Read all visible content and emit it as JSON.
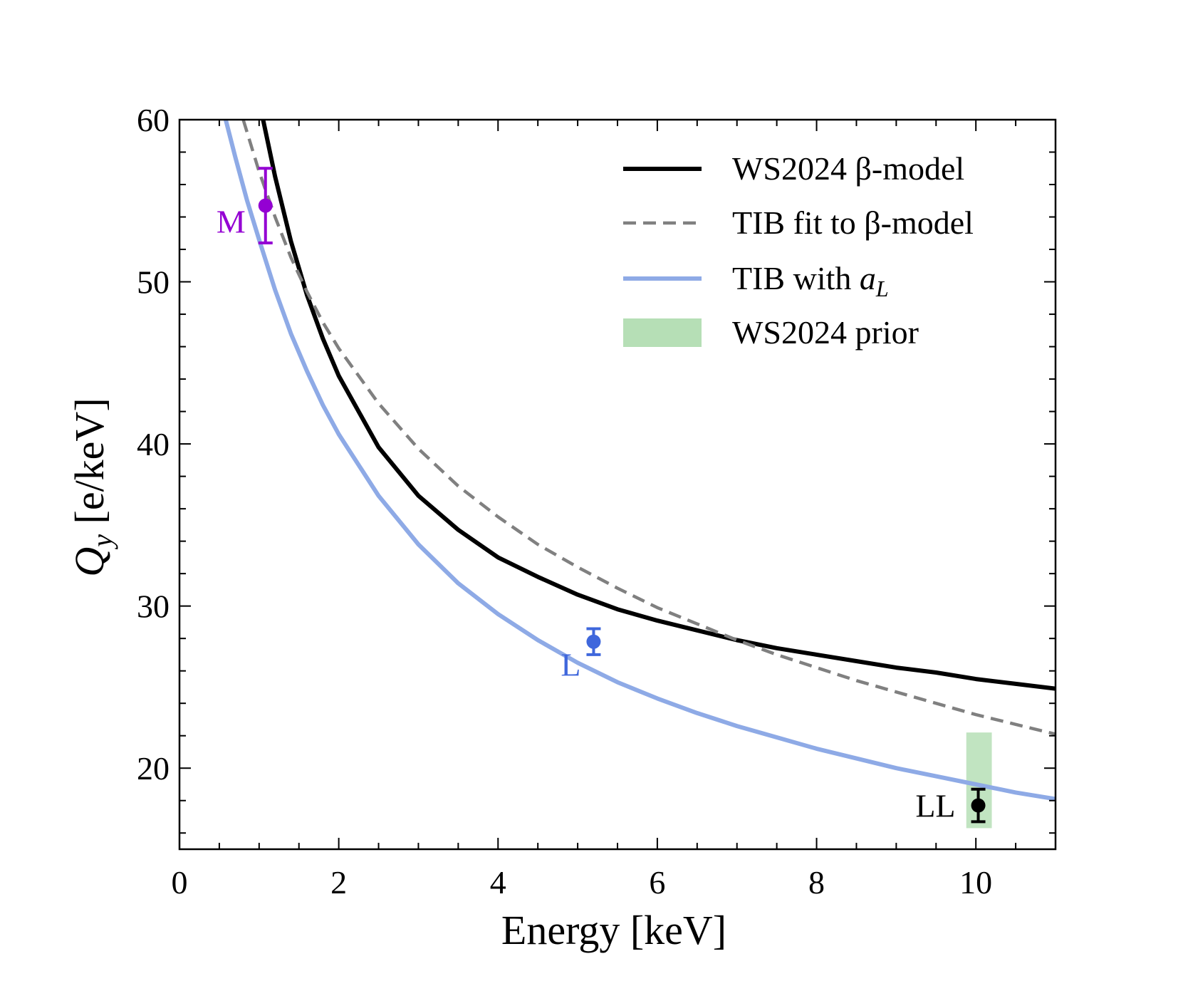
{
  "chart_data": {
    "type": "line",
    "title": "",
    "xlabel": "Energy [keV]",
    "ylabel_math": "Q",
    "ylabel_sub": "y",
    "ylabel_unit": " [e/keV]",
    "xlim": [
      0,
      11
    ],
    "ylim": [
      15,
      60
    ],
    "xticks": [
      0,
      2,
      4,
      6,
      8,
      10
    ],
    "yticks": [
      20,
      30,
      40,
      50,
      60
    ],
    "xtick_labels": [
      "0",
      "2",
      "4",
      "6",
      "8",
      "10"
    ],
    "ytick_labels": [
      "20",
      "30",
      "40",
      "50",
      "60"
    ],
    "series": [
      {
        "name": "WS2024 β-model",
        "style": "solid",
        "color": "#000000",
        "x": [
          1.05,
          1.2,
          1.4,
          1.6,
          1.8,
          2.0,
          2.5,
          3.0,
          3.5,
          4.0,
          4.5,
          5.0,
          5.5,
          6.0,
          6.5,
          7.0,
          7.5,
          8.0,
          8.5,
          9.0,
          9.5,
          10.0,
          10.5,
          11.0
        ],
        "y": [
          60.0,
          56.5,
          52.5,
          49.2,
          46.5,
          44.2,
          39.8,
          36.8,
          34.7,
          33.0,
          31.8,
          30.7,
          29.8,
          29.1,
          28.5,
          27.9,
          27.4,
          27.0,
          26.6,
          26.2,
          25.9,
          25.5,
          25.2,
          24.9
        ]
      },
      {
        "name": "TIB fit to β-model",
        "style": "dashed",
        "color": "#808080",
        "x": [
          0.8,
          1.0,
          1.2,
          1.4,
          1.6,
          1.8,
          2.0,
          2.5,
          3.0,
          3.5,
          4.0,
          4.5,
          5.0,
          5.5,
          6.0,
          6.5,
          7.0,
          7.5,
          8.0,
          8.5,
          9.0,
          9.5,
          10.0,
          10.5,
          11.0
        ],
        "y": [
          60.0,
          56.8,
          54.0,
          51.5,
          49.4,
          47.5,
          45.9,
          42.5,
          39.7,
          37.4,
          35.5,
          33.8,
          32.4,
          31.1,
          29.9,
          28.9,
          27.9,
          27.0,
          26.2,
          25.4,
          24.7,
          24.0,
          23.3,
          22.7,
          22.1
        ]
      },
      {
        "name": "TIB with a",
        "name_sub": "L",
        "style": "solid",
        "color": "#8eaae6",
        "x": [
          0.58,
          0.7,
          0.85,
          1.0,
          1.2,
          1.4,
          1.6,
          1.8,
          2.0,
          2.5,
          3.0,
          3.5,
          4.0,
          4.5,
          5.0,
          5.5,
          6.0,
          6.5,
          7.0,
          7.5,
          8.0,
          8.5,
          9.0,
          9.5,
          10.0,
          10.5,
          11.0
        ],
        "y": [
          60.0,
          57.7,
          55.0,
          52.6,
          49.5,
          46.8,
          44.5,
          42.4,
          40.6,
          36.8,
          33.8,
          31.4,
          29.5,
          27.9,
          26.5,
          25.3,
          24.3,
          23.4,
          22.6,
          21.9,
          21.2,
          20.6,
          20.0,
          19.5,
          19.0,
          18.5,
          18.1
        ]
      }
    ],
    "points": [
      {
        "label": "M",
        "x": 1.08,
        "y": 54.7,
        "err_low": 2.3,
        "err_high": 2.3,
        "color": "#9400d3"
      },
      {
        "label": "L",
        "x": 5.2,
        "y": 27.8,
        "err_low": 0.8,
        "err_high": 0.8,
        "color": "#3f67dc"
      },
      {
        "label": "LL",
        "x": 10.03,
        "y": 17.7,
        "err_low": 1.0,
        "err_high": 1.0,
        "color": "#000000"
      }
    ],
    "band": {
      "name": "WS2024 prior",
      "x_range": [
        9.88,
        10.2
      ],
      "y_range": [
        16.3,
        22.2
      ],
      "color": "#b6dfb6"
    },
    "legend": {
      "position": "top-right",
      "items": [
        {
          "label": "WS2024 β-model",
          "kind": "solid-line",
          "color": "#000000"
        },
        {
          "label": "TIB fit to β-model",
          "kind": "dashed-line",
          "color": "#808080"
        },
        {
          "label": "TIB with ",
          "label_math": "a",
          "label_sub": "L",
          "kind": "solid-line",
          "color": "#8eaae6"
        },
        {
          "label": "WS2024 prior",
          "kind": "patch",
          "color": "#b6dfb6"
        }
      ]
    }
  }
}
